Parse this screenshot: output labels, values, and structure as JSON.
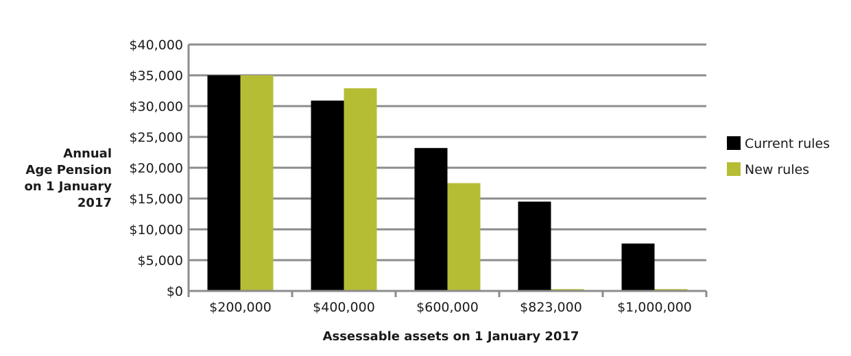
{
  "chart_data": {
    "type": "bar",
    "title": "",
    "ylabel_lines": [
      "Annual",
      "Age Pension",
      "on 1 January",
      "2017"
    ],
    "xlabel": "Assessable assets on 1 January 2017",
    "categories": [
      "$200,000",
      "$400,000",
      "$600,000",
      "$823,000",
      "$1,000,000"
    ],
    "series": [
      {
        "name": "Current rules",
        "color": "#000000",
        "values": [
          35000,
          30900,
          23200,
          14500,
          7700
        ]
      },
      {
        "name": "New rules",
        "color": "#b5bd35",
        "values": [
          35000,
          32900,
          17500,
          300,
          300
        ]
      }
    ],
    "ylim": [
      0,
      40000
    ],
    "yticks": [
      {
        "value": 0,
        "label": "$0"
      },
      {
        "value": 5000,
        "label": "$5,000"
      },
      {
        "value": 10000,
        "label": "$10,000"
      },
      {
        "value": 15000,
        "label": "$15,000"
      },
      {
        "value": 20000,
        "label": "$20,000"
      },
      {
        "value": 25000,
        "label": "$25,000"
      },
      {
        "value": 30000,
        "label": "$30,000"
      },
      {
        "value": 35000,
        "label": "$35,000"
      },
      {
        "value": 40000,
        "label": "$40,000"
      }
    ],
    "grid": true,
    "legend_position": "right",
    "colors": {
      "grid": "#8c8c8c",
      "axis": "#8c8c8c"
    }
  }
}
